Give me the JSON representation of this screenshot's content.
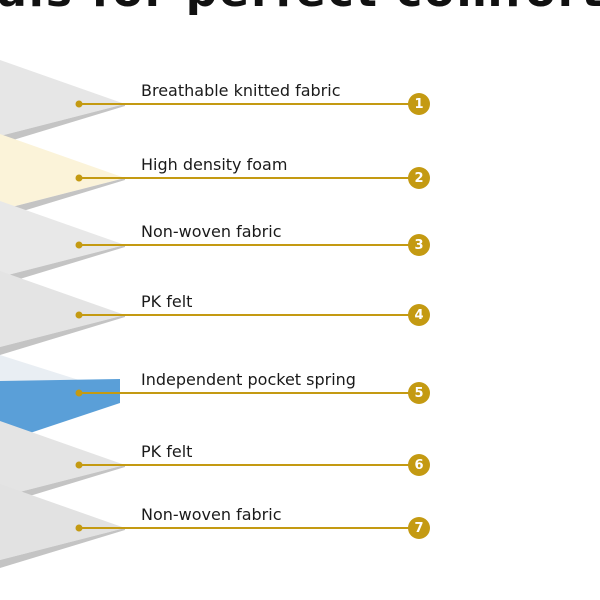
{
  "heading": "ials for perfect comfort",
  "accent_color": "#C49A12",
  "layers": [
    {
      "number": "1",
      "label": "Breathable knitted fabric",
      "fill": "#e6e6e6"
    },
    {
      "number": "2",
      "label": "High density foam",
      "fill": "#fbf3d9"
    },
    {
      "number": "3",
      "label": "Non-woven fabric",
      "fill": "#e8e8e8"
    },
    {
      "number": "4",
      "label": "PK felt",
      "fill": "#e4e4e4"
    },
    {
      "number": "5",
      "label": "Independent pocket spring",
      "fill": "#5a9fd8"
    },
    {
      "number": "6",
      "label": "PK felt",
      "fill": "#e4e4e4"
    },
    {
      "number": "7",
      "label": "Non-woven fabric",
      "fill": "#e2e2e2"
    }
  ]
}
